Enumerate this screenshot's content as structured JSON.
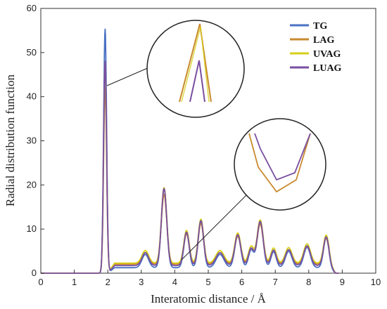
{
  "chart_data": {
    "type": "line",
    "xlabel": "Interatomic distance / Å",
    "ylabel": "Radial distribution function",
    "xlim": [
      0,
      10
    ],
    "ylim": [
      0,
      60
    ],
    "xticks": [
      "0",
      "1",
      "2",
      "3",
      "4",
      "5",
      "6",
      "7",
      "8",
      "9",
      "10"
    ],
    "yticks": [
      "0",
      "10",
      "20",
      "30",
      "40",
      "50",
      "60"
    ],
    "grid": false,
    "legend_position": "top-right",
    "series": [
      {
        "name": "TG",
        "color": "#4a72c4",
        "offset": -1.2,
        "peak1": 55.3,
        "scale": 1.0
      },
      {
        "name": "LAG",
        "color": "#c98a2e",
        "offset": -0.2,
        "peak1": 42.0,
        "scale": 0.88
      },
      {
        "name": "UVAG",
        "color": "#d6cf1a",
        "offset": 0.1,
        "peak1": 47.5,
        "scale": 0.95
      },
      {
        "name": "LUAG",
        "color": "#7a4fa0",
        "offset": -0.6,
        "peak1": 48.0,
        "scale": 0.97
      }
    ],
    "peaks": [
      {
        "x": 3.12,
        "y": 3.0,
        "w": 0.1
      },
      {
        "x": 3.68,
        "y": 18.0,
        "w": 0.08
      },
      {
        "x": 4.35,
        "y": 7.8,
        "w": 0.08
      },
      {
        "x": 4.78,
        "y": 10.5,
        "w": 0.08
      },
      {
        "x": 5.35,
        "y": 3.0,
        "w": 0.12
      },
      {
        "x": 5.88,
        "y": 7.2,
        "w": 0.09
      },
      {
        "x": 6.28,
        "y": 4.0,
        "w": 0.08
      },
      {
        "x": 6.55,
        "y": 10.3,
        "w": 0.09
      },
      {
        "x": 6.95,
        "y": 3.6,
        "w": 0.08
      },
      {
        "x": 7.4,
        "y": 3.7,
        "w": 0.1
      },
      {
        "x": 7.95,
        "y": 4.6,
        "w": 0.1
      },
      {
        "x": 8.52,
        "y": 6.7,
        "w": 0.08
      }
    ],
    "zoom_insets": [
      {
        "name": "first-peak-zoom",
        "target_x": 1.92,
        "target_y": 42
      },
      {
        "name": "valley-zoom",
        "target_x": 4.2,
        "target_y": 2
      }
    ]
  }
}
